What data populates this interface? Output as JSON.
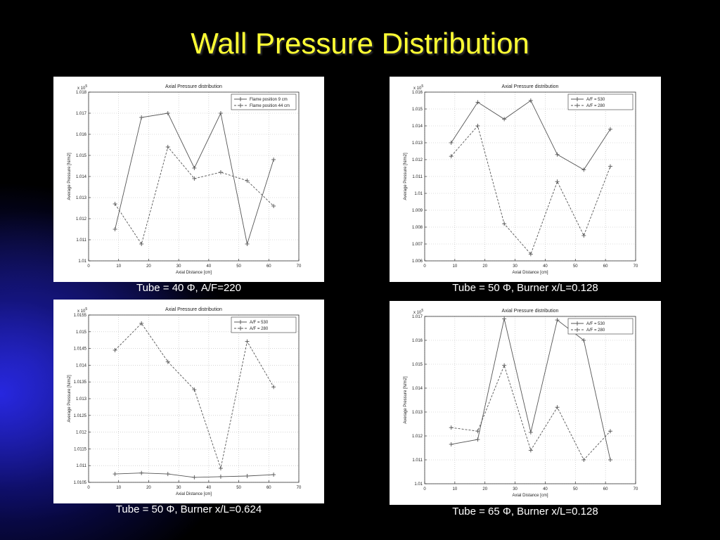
{
  "slide": {
    "title": "Wall Pressure Distribution",
    "captions": [
      "Tube = 40 Φ, A/F=220",
      "Tube = 50 Φ, Burner x/L=0.128",
      "Tube = 50 Φ, Burner x/L=0.624",
      "Tube = 65 Φ, Burner x/L=0.128"
    ]
  },
  "chart_data": [
    {
      "type": "line",
      "title": "Axial Pressure distribution",
      "xlabel": "Axial Distance [cm]",
      "ylabel": "Average Pressure [N/m2]",
      "y_multiplier": "x 10^5",
      "xlim": [
        0,
        70
      ],
      "ylim": [
        1.01,
        1.018
      ],
      "xticks": [
        0,
        10,
        20,
        30,
        40,
        50,
        60,
        70
      ],
      "yticks": [
        "1.01",
        "1.011",
        "1.012",
        "1.013",
        "1.014",
        "1.015",
        "1.016",
        "1.017",
        "1.018"
      ],
      "grid": true,
      "legend_position": "top-right",
      "x": [
        8.8,
        17.6,
        26.4,
        35.2,
        44.0,
        52.8,
        61.6
      ],
      "series": [
        {
          "name": "Flame position 9 cm",
          "style": "solid",
          "marker": "+",
          "values": [
            1.0115,
            1.0168,
            1.017,
            1.0144,
            1.017,
            1.0108,
            1.0148
          ]
        },
        {
          "name": "Flame position 44 cm",
          "style": "dashed",
          "marker": "+",
          "values": [
            1.0127,
            1.0108,
            1.0154,
            1.0139,
            1.0142,
            1.0138,
            1.0126
          ]
        }
      ]
    },
    {
      "type": "line",
      "title": "Axial Pressure distribution",
      "xlabel": "Axial Distance [cm]",
      "ylabel": "Average Pressure [N/m2]",
      "y_multiplier": "x 10^5",
      "xlim": [
        0,
        70
      ],
      "ylim": [
        1.006,
        1.016
      ],
      "xticks": [
        0,
        10,
        20,
        30,
        40,
        50,
        60,
        70
      ],
      "yticks": [
        "1.006",
        "1.007",
        "1.008",
        "1.009",
        "1.01",
        "1.011",
        "1.012",
        "1.013",
        "1.014",
        "1.015",
        "1.016"
      ],
      "grid": true,
      "legend_position": "top-right",
      "x": [
        8.8,
        17.6,
        26.4,
        35.2,
        44.0,
        52.8,
        61.6
      ],
      "series": [
        {
          "name": "A/F = 530",
          "style": "solid",
          "marker": "+",
          "values": [
            1.013,
            1.0154,
            1.0144,
            1.0155,
            1.0123,
            1.0114,
            1.0138
          ]
        },
        {
          "name": "A/F = 280",
          "style": "dashed",
          "marker": "+",
          "values": [
            1.0122,
            1.014,
            1.0082,
            1.0064,
            1.0107,
            1.0075,
            1.0116
          ]
        }
      ]
    },
    {
      "type": "line",
      "title": "Axial Pressure distribution",
      "xlabel": "Axial Distance [cm]",
      "ylabel": "Average Pressure [N/m2]",
      "y_multiplier": "x 10^5",
      "xlim": [
        0,
        70
      ],
      "ylim": [
        1.0105,
        1.0155
      ],
      "xticks": [
        0,
        10,
        20,
        30,
        40,
        50,
        60,
        70
      ],
      "yticks": [
        "1.0105",
        "1.011",
        "1.0115",
        "1.012",
        "1.0125",
        "1.013",
        "1.0135",
        "1.014",
        "1.0145",
        "1.015",
        "1.0155"
      ],
      "grid": true,
      "legend_position": "top-right",
      "x": [
        8.8,
        17.6,
        26.4,
        35.2,
        44.0,
        52.8,
        61.6
      ],
      "series": [
        {
          "name": "A/F = 530",
          "style": "solid",
          "marker": "+",
          "values": [
            1.01075,
            1.01078,
            1.01075,
            1.01065,
            1.01067,
            1.01069,
            1.01073
          ]
        },
        {
          "name": "A/F = 280",
          "style": "dashed",
          "marker": "+",
          "values": [
            1.01445,
            1.01525,
            1.0141,
            1.01327,
            1.01092,
            1.01471,
            1.01335
          ]
        }
      ]
    },
    {
      "type": "line",
      "title": "Axial Pressure distribution",
      "xlabel": "Axial Distance [cm]",
      "ylabel": "Average Pressure [N/m2]",
      "y_multiplier": "x 10^5",
      "xlim": [
        0,
        70
      ],
      "ylim": [
        1.01,
        1.017
      ],
      "xticks": [
        0,
        10,
        20,
        30,
        40,
        50,
        60,
        70
      ],
      "yticks": [
        "1.01",
        "1.011",
        "1.012",
        "1.013",
        "1.014",
        "1.015",
        "1.016",
        "1.017"
      ],
      "grid": true,
      "legend_position": "top-right",
      "x": [
        8.8,
        17.6,
        26.4,
        35.2,
        44.0,
        52.8,
        61.6
      ],
      "series": [
        {
          "name": "A/F = 530",
          "style": "solid",
          "marker": "+",
          "values": [
            1.01165,
            1.01185,
            1.0169,
            1.01215,
            1.01685,
            1.016,
            1.011
          ]
        },
        {
          "name": "A/F = 280",
          "style": "dashed",
          "marker": "+",
          "values": [
            1.01235,
            1.0122,
            1.01495,
            1.0114,
            1.0132,
            1.011,
            1.0122
          ]
        }
      ]
    }
  ]
}
